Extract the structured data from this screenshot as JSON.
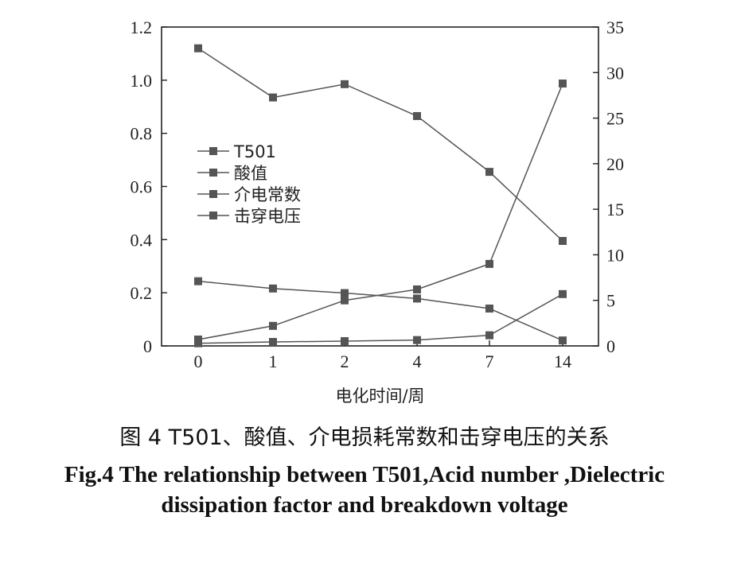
{
  "chart_data": {
    "type": "line",
    "categories": [
      "0",
      "1",
      "2",
      "4",
      "7",
      "14"
    ],
    "xlabel": "电化时间/周",
    "y_left": {
      "ticks": [
        "0",
        "0.2",
        "0.4",
        "0.6",
        "0.8",
        "1.0",
        "1.2"
      ],
      "ylim": [
        0,
        1.2
      ]
    },
    "y_right": {
      "ticks": [
        "0",
        "5",
        "10",
        "15",
        "20",
        "25",
        "30",
        "35"
      ],
      "ylim": [
        0,
        35
      ]
    },
    "legend_placement": "upper-left",
    "grid": false,
    "series": [
      {
        "name": "T501",
        "axis": "left",
        "values": [
          1.12,
          0.935,
          0.985,
          0.865,
          0.655,
          0.395
        ]
      },
      {
        "name": "酸值",
        "axis": "left",
        "values": [
          0.01,
          0.015,
          0.018,
          0.022,
          0.04,
          0.195
        ]
      },
      {
        "name": "介电常数",
        "axis": "right",
        "values": [
          0.7,
          2.2,
          5.0,
          6.2,
          9.0,
          28.8
        ]
      },
      {
        "name": "击穿电压",
        "axis": "right",
        "values": [
          7.1,
          6.3,
          5.8,
          5.2,
          4.1,
          0.6
        ]
      }
    ],
    "colors": {
      "line": "#555555",
      "marker": "#555555",
      "axis": "#222222"
    }
  },
  "caption": {
    "cn": "图 4 T501、酸值、介电损耗常数和击穿电压的关系",
    "en": "Fig.4 The relationship between T501,Acid number ,Dielectric dissipation factor and breakdown voltage"
  }
}
